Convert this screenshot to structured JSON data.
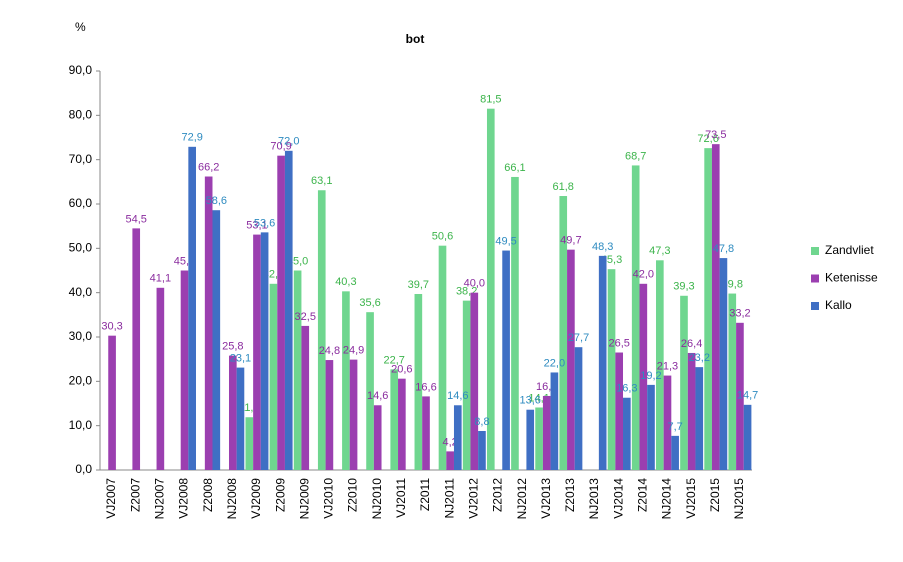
{
  "chart_data": {
    "type": "bar",
    "title": "bot",
    "y_label": "%",
    "categories": [
      "VJ2007",
      "Z2007",
      "NJ2007",
      "VJ2008",
      "Z2008",
      "NJ2008",
      "VJ2009",
      "Z2009",
      "NJ2009",
      "VJ2010",
      "Z2010",
      "NJ2010",
      "VJ2011",
      "Z2011",
      "NJ2011",
      "VJ2012",
      "Z2012",
      "NJ2012",
      "VJ2013",
      "Z2013",
      "NJ2013",
      "VJ2014",
      "Z2014",
      "NJ2014",
      "VJ2015",
      "Z2015",
      "NJ2015"
    ],
    "series": [
      {
        "name": "Zandvliet",
        "color": "#6fd68f",
        "label_color": "#3cb44b",
        "values": [
          null,
          null,
          null,
          null,
          null,
          null,
          11.9,
          42.0,
          45.0,
          63.1,
          40.3,
          35.6,
          22.7,
          39.7,
          50.6,
          38.2,
          81.5,
          66.1,
          14.1,
          61.8,
          null,
          45.3,
          68.7,
          47.3,
          39.3,
          72.6,
          39.8
        ],
        "value_labels": [
          null,
          null,
          null,
          null,
          null,
          null,
          "11,9",
          "42,0",
          "45,0",
          "63,1",
          "40,3",
          "35,6",
          "22,7",
          "39,7",
          "50,6",
          "38,2",
          "81,5",
          "66,1",
          "14,1",
          "61,8",
          null,
          "45,3",
          "68,7",
          "47,3",
          "39,3",
          "72,6",
          "39,8"
        ]
      },
      {
        "name": "Ketenisse",
        "color": "#9b3fb0",
        "label_color": "#8a2c9e",
        "values": [
          30.3,
          54.5,
          41.1,
          45.0,
          66.2,
          25.8,
          53.1,
          70.9,
          32.5,
          24.8,
          24.9,
          14.6,
          20.6,
          16.6,
          4.2,
          40.0,
          null,
          null,
          16.7,
          49.7,
          null,
          26.5,
          42.0,
          21.3,
          26.4,
          73.5,
          33.2
        ],
        "value_labels": [
          "30,3",
          "54,5",
          "41,1",
          "45,0",
          "66,2",
          "25,8",
          "53,1",
          "70,9",
          "32,5",
          "24,8",
          "24,9",
          "14,6",
          "20,6",
          "16,6",
          "4,2",
          "40,0",
          null,
          null,
          "16,7",
          "49,7",
          null,
          "26,5",
          "42,0",
          "21,3",
          "26,4",
          "73,5",
          "33,2"
        ]
      },
      {
        "name": "Kallo",
        "color": "#3f6fc4",
        "label_color": "#2e8bc0",
        "values": [
          null,
          null,
          null,
          72.9,
          58.6,
          23.1,
          53.6,
          72.0,
          null,
          null,
          null,
          null,
          null,
          null,
          14.6,
          8.8,
          49.5,
          13.6,
          22.0,
          27.7,
          48.3,
          16.3,
          19.2,
          7.7,
          23.2,
          47.8,
          14.7
        ],
        "value_labels": [
          null,
          null,
          null,
          "72,9",
          "58,6",
          "23,1",
          "53,6",
          "72,0",
          null,
          null,
          null,
          null,
          null,
          null,
          "14,6",
          "8,8",
          "49,5",
          "13,6",
          "22,0",
          "27,7",
          "48,3",
          "16,3",
          "19,2",
          "7,7",
          "23,2",
          "47,8",
          "14,7"
        ]
      }
    ],
    "ylim": [
      0,
      90
    ],
    "yticks": [
      {
        "value": 0,
        "label": "0,0"
      },
      {
        "value": 10,
        "label": "10,0"
      },
      {
        "value": 20,
        "label": "20,0"
      },
      {
        "value": 30,
        "label": "30,0"
      },
      {
        "value": 40,
        "label": "40,0"
      },
      {
        "value": 50,
        "label": "50,0"
      },
      {
        "value": 60,
        "label": "60,0"
      },
      {
        "value": 70,
        "label": "70,0"
      },
      {
        "value": 80,
        "label": "80,0"
      },
      {
        "value": 90,
        "label": "90,0"
      }
    ],
    "grid": false,
    "legend": "right"
  }
}
